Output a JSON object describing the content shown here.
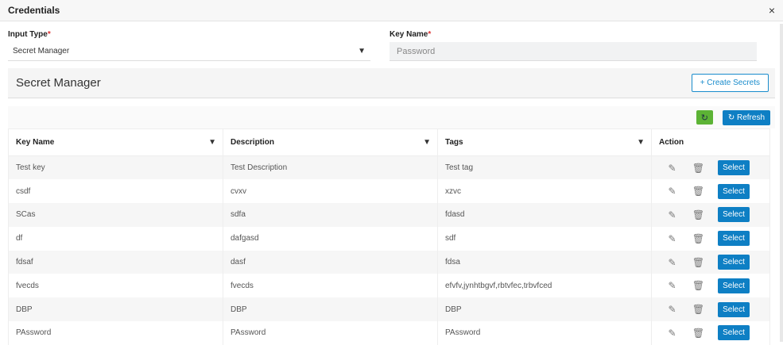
{
  "header": {
    "title": "Credentials",
    "close": "×"
  },
  "form": {
    "input_type_label": "Input Type",
    "input_type_value": "Secret Manager",
    "key_name_label": "Key Name",
    "key_name_value": "Password",
    "required": "*"
  },
  "section": {
    "title": "Secret Manager",
    "create_label": "+ Create Secrets"
  },
  "toolbar": {
    "refresh_label": "Refresh",
    "colors": {
      "green": "#5cb335",
      "blue": "#0e7fc4"
    }
  },
  "table": {
    "columns": [
      "Key Name",
      "Description",
      "Tags",
      "Action"
    ],
    "rows": [
      [
        "Test key",
        "Test Description",
        "Test tag"
      ],
      [
        "csdf",
        "cvxv",
        "xzvc"
      ],
      [
        "SCas",
        "sdfa",
        "fdasd"
      ],
      [
        "df",
        "dafgasd",
        "sdf"
      ],
      [
        "fdsaf",
        "dasf",
        "fdsa"
      ],
      [
        "fvecds",
        "fvecds",
        "efvfv,jynhtbgvf,rbtvfec,trbvfced"
      ],
      [
        "DBP",
        "DBP",
        "DBP"
      ],
      [
        "PAssword",
        "PAssword",
        "PAssword"
      ]
    ],
    "select_label": "Select"
  }
}
